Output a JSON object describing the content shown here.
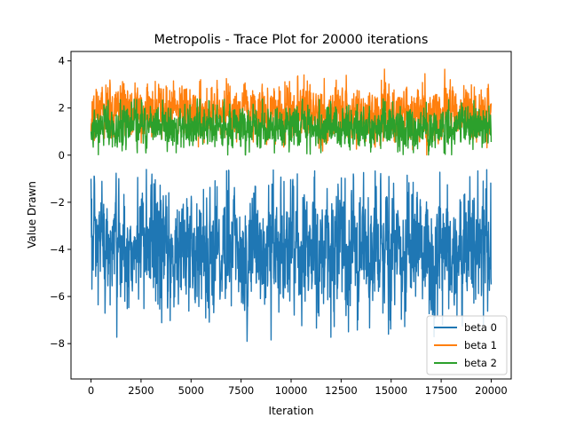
{
  "chart_data": {
    "type": "line",
    "title": "Metropolis - Trace Plot for 20000 iterations",
    "xlabel": "Iteration",
    "ylabel": "Value Drawn",
    "xlim": [
      -1000,
      21000
    ],
    "ylim": [
      -9.5,
      4.4
    ],
    "x_ticks": [
      0,
      2500,
      5000,
      7500,
      10000,
      12500,
      15000,
      17500,
      20000
    ],
    "x_tick_labels": [
      "0",
      "2500",
      "5000",
      "7500",
      "10000",
      "12500",
      "15000",
      "17500",
      "20000"
    ],
    "y_ticks": [
      -8,
      -6,
      -4,
      -2,
      0,
      2,
      4
    ],
    "y_tick_labels": [
      "−8",
      "−6",
      "−4",
      "−2",
      "0",
      "2",
      "4"
    ],
    "grid": false,
    "legend": {
      "position": "bottom-right"
    },
    "iterations": 20000,
    "series": [
      {
        "name": "beta 0",
        "color": "#1f77b4",
        "mean": -4.0,
        "band_low": -6.2,
        "band_high": -1.9,
        "min": -8.8,
        "max": -0.6,
        "start_value": -1.0
      },
      {
        "name": "beta 1",
        "color": "#ff7f0e",
        "mean": 1.85,
        "band_low": 0.9,
        "band_high": 2.8,
        "min": 0.0,
        "max": 3.65,
        "start_value": 1.0
      },
      {
        "name": "beta 2",
        "color": "#2ca02c",
        "mean": 1.2,
        "band_low": 0.5,
        "band_high": 1.9,
        "min": 0.0,
        "max": 2.4,
        "start_value": 1.0
      }
    ]
  }
}
